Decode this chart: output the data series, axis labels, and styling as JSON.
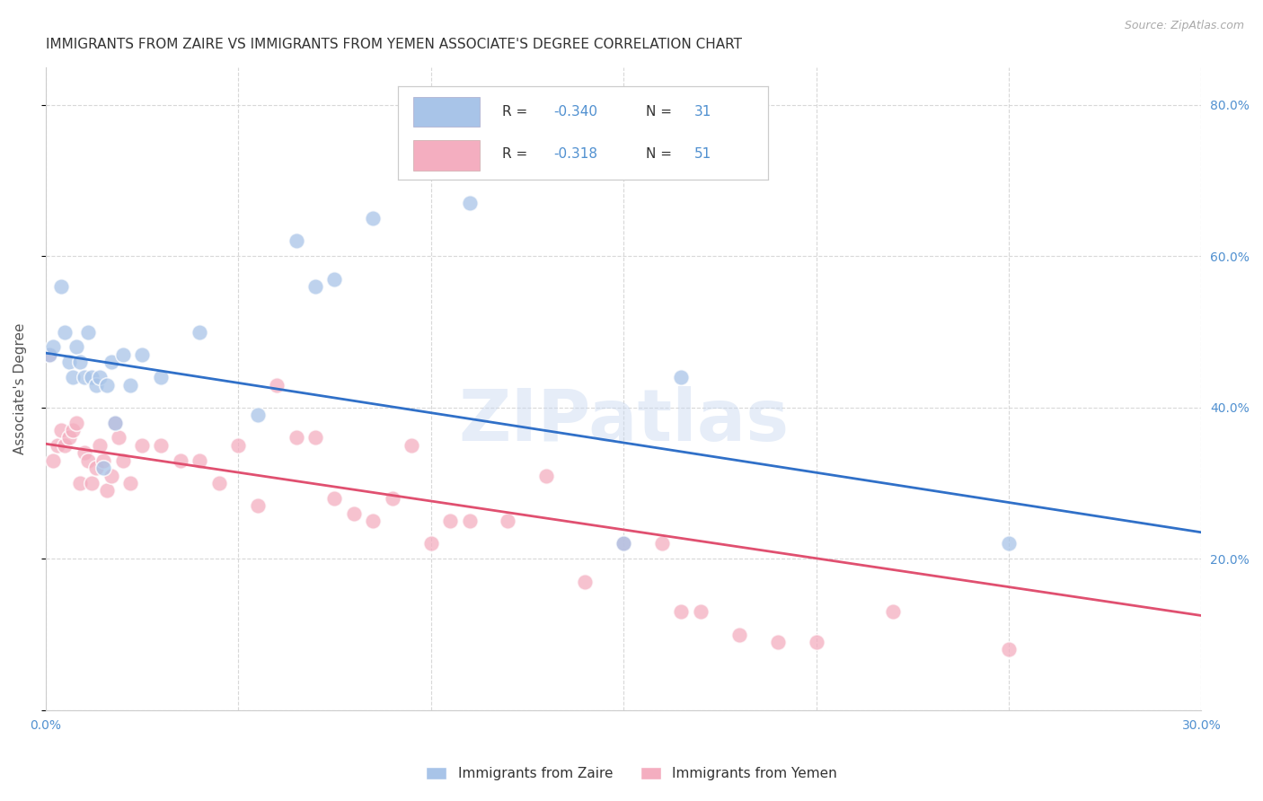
{
  "title": "IMMIGRANTS FROM ZAIRE VS IMMIGRANTS FROM YEMEN ASSOCIATE'S DEGREE CORRELATION CHART",
  "source": "Source: ZipAtlas.com",
  "ylabel": "Associate's Degree",
  "watermark": "ZIPatlas",
  "xmin": 0.0,
  "xmax": 0.3,
  "ymin": 0.0,
  "ymax": 0.85,
  "yticks": [
    0.0,
    0.2,
    0.4,
    0.6,
    0.8
  ],
  "ytick_labels": [
    "",
    "20.0%",
    "40.0%",
    "60.0%",
    "80.0%"
  ],
  "xticks": [
    0.0,
    0.05,
    0.1,
    0.15,
    0.2,
    0.25,
    0.3
  ],
  "zaire_R": -0.34,
  "zaire_N": 31,
  "yemen_R": -0.318,
  "yemen_N": 51,
  "zaire_color": "#a8c4e8",
  "yemen_color": "#f4aec0",
  "zaire_line_color": "#3070c8",
  "yemen_line_color": "#e05070",
  "zaire_x": [
    0.001,
    0.002,
    0.004,
    0.005,
    0.006,
    0.007,
    0.008,
    0.009,
    0.01,
    0.011,
    0.012,
    0.013,
    0.014,
    0.015,
    0.016,
    0.017,
    0.018,
    0.02,
    0.022,
    0.025,
    0.03,
    0.04,
    0.055,
    0.065,
    0.07,
    0.075,
    0.085,
    0.11,
    0.15,
    0.165,
    0.25
  ],
  "zaire_y": [
    0.47,
    0.48,
    0.56,
    0.5,
    0.46,
    0.44,
    0.48,
    0.46,
    0.44,
    0.5,
    0.44,
    0.43,
    0.44,
    0.32,
    0.43,
    0.46,
    0.38,
    0.47,
    0.43,
    0.47,
    0.44,
    0.5,
    0.39,
    0.62,
    0.56,
    0.57,
    0.65,
    0.67,
    0.22,
    0.44,
    0.22
  ],
  "yemen_x": [
    0.001,
    0.002,
    0.003,
    0.004,
    0.005,
    0.006,
    0.007,
    0.008,
    0.009,
    0.01,
    0.011,
    0.012,
    0.013,
    0.014,
    0.015,
    0.016,
    0.017,
    0.018,
    0.019,
    0.02,
    0.022,
    0.025,
    0.03,
    0.035,
    0.04,
    0.045,
    0.05,
    0.055,
    0.06,
    0.065,
    0.07,
    0.075,
    0.08,
    0.085,
    0.09,
    0.095,
    0.1,
    0.105,
    0.11,
    0.12,
    0.13,
    0.14,
    0.15,
    0.16,
    0.165,
    0.17,
    0.18,
    0.19,
    0.2,
    0.22,
    0.25
  ],
  "yemen_y": [
    0.47,
    0.33,
    0.35,
    0.37,
    0.35,
    0.36,
    0.37,
    0.38,
    0.3,
    0.34,
    0.33,
    0.3,
    0.32,
    0.35,
    0.33,
    0.29,
    0.31,
    0.38,
    0.36,
    0.33,
    0.3,
    0.35,
    0.35,
    0.33,
    0.33,
    0.3,
    0.35,
    0.27,
    0.43,
    0.36,
    0.36,
    0.28,
    0.26,
    0.25,
    0.28,
    0.35,
    0.22,
    0.25,
    0.25,
    0.25,
    0.31,
    0.17,
    0.22,
    0.22,
    0.13,
    0.13,
    0.1,
    0.09,
    0.09,
    0.13,
    0.08
  ],
  "zaire_trend_x": [
    0.0,
    0.3
  ],
  "zaire_trend_y": [
    0.472,
    0.235
  ],
  "yemen_trend_x": [
    0.0,
    0.3
  ],
  "yemen_trend_y": [
    0.352,
    0.125
  ],
  "grid_color": "#d8d8d8",
  "background_color": "#ffffff",
  "title_fontsize": 11,
  "axis_label_fontsize": 11,
  "tick_label_color": "#5090d0",
  "legend_text_color": "#333333",
  "legend_value_color": "#5090d0"
}
